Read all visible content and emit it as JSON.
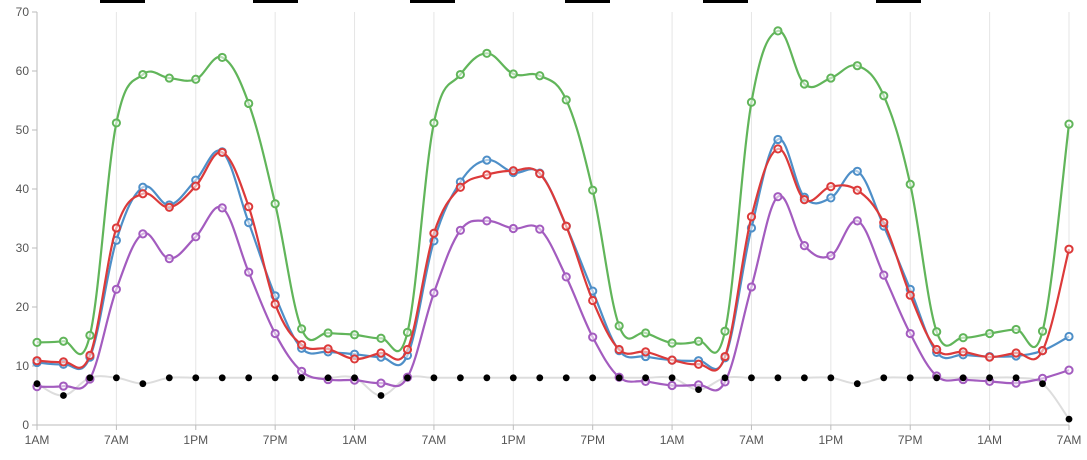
{
  "chart_data": {
    "type": "line",
    "title": "",
    "xlabel": "",
    "ylabel": "",
    "ylim": [
      0,
      70
    ],
    "y_ticks": [
      0,
      10,
      20,
      30,
      40,
      50,
      60,
      70
    ],
    "x_tick_labels": [
      "1AM",
      "7AM",
      "1PM",
      "7PM",
      "1AM",
      "7AM",
      "1PM",
      "7PM",
      "1AM",
      "7AM",
      "1PM",
      "7PM",
      "1AM",
      "7AM"
    ],
    "x_tick_step_hours": 6,
    "x_hours": [
      0,
      2,
      4,
      6,
      8,
      10,
      12,
      14,
      16,
      18,
      20,
      22,
      24,
      26,
      28,
      30,
      32,
      34,
      36,
      38,
      40,
      42,
      44,
      46,
      48,
      50,
      52,
      54,
      56,
      58,
      60,
      62,
      64,
      66,
      68,
      70,
      72,
      74,
      76,
      78
    ],
    "grid": "vertical",
    "legend": "top",
    "legend_entries": [
      {
        "name": "",
        "color": "#000000"
      },
      {
        "name": "",
        "color": "#000000"
      },
      {
        "name": "",
        "color": "#000000"
      },
      {
        "name": "",
        "color": "#000000"
      },
      {
        "name": "",
        "color": "#000000"
      },
      {
        "name": "",
        "color": "#000000"
      }
    ],
    "series": [
      {
        "color": "#61b55a",
        "values": [
          14,
          14.2,
          15.2,
          51.2,
          59.4,
          58.8,
          58.6,
          62.3,
          54.5,
          37.5,
          16.3,
          15.6,
          15.3,
          14.7,
          15.7,
          51.2,
          59.4,
          63,
          59.5,
          59.2,
          55.1,
          39.8,
          16.8,
          15.6,
          13.9,
          14.2,
          15.9,
          54.7,
          66.8,
          57.8,
          58.8,
          60.9,
          55.8,
          40.8,
          15.8,
          14.8,
          15.5,
          16.2,
          15.9,
          51
        ]
      },
      {
        "color": "#4e8fc8",
        "values": [
          10.6,
          10.3,
          11.5,
          31.3,
          40.3,
          37.3,
          41.5,
          46.3,
          34.3,
          21.9,
          13,
          12.4,
          12,
          11.5,
          11.8,
          31.2,
          41.2,
          44.9,
          42.8,
          42.7,
          33.7,
          22.7,
          12.6,
          11.6,
          11,
          10.9,
          11.4,
          33.4,
          48.4,
          38.6,
          38.5,
          43,
          33.7,
          23,
          12.3,
          11.9,
          11.6,
          11.7,
          12.6,
          15
        ]
      },
      {
        "color": "#dc3a3a",
        "values": [
          10.9,
          10.7,
          11.8,
          33.4,
          39.2,
          36.9,
          40.5,
          46.2,
          37,
          20.5,
          13.6,
          12.9,
          11.2,
          12.2,
          12.8,
          32.5,
          40.3,
          42.4,
          43.1,
          42.6,
          33.7,
          21.1,
          12.8,
          12.4,
          11,
          10.3,
          11.6,
          35.3,
          46.8,
          38.2,
          40.4,
          39.8,
          34.3,
          22,
          12.8,
          12.4,
          11.5,
          12.2,
          12.6,
          29.8
        ]
      },
      {
        "color": "#a35cbf",
        "values": [
          6.5,
          6.6,
          7.8,
          23,
          32.4,
          28.2,
          31.9,
          36.8,
          25.9,
          15.5,
          9.1,
          7.7,
          7.6,
          7.1,
          8.1,
          22.4,
          33,
          34.6,
          33.3,
          33.2,
          25.1,
          14.9,
          8.1,
          7.4,
          6.7,
          6.8,
          7.3,
          23.4,
          38.7,
          30.4,
          28.7,
          34.6,
          25.4,
          15.5,
          8.3,
          7.7,
          7.4,
          7.1,
          7.9,
          9.3
        ]
      },
      {
        "color": "#000000",
        "marker_only": true,
        "values": [
          7,
          5,
          8,
          8,
          7,
          8,
          8,
          8,
          8,
          8,
          8,
          8,
          8,
          5,
          8,
          8,
          8,
          8,
          8,
          8,
          8,
          8,
          8,
          8,
          8,
          6,
          8,
          8,
          8,
          8,
          8,
          7,
          8,
          8,
          8,
          8,
          8,
          8,
          7,
          1
        ]
      }
    ],
    "background_trace": {
      "color": "#dddddd",
      "values": [
        7,
        5,
        8,
        8,
        7,
        8,
        8,
        8,
        8,
        8,
        8,
        8,
        8,
        5,
        8,
        8,
        8,
        8,
        8,
        8,
        8,
        8,
        8,
        8,
        8,
        6,
        8,
        8,
        8,
        8,
        8,
        7,
        8,
        8,
        8,
        8,
        8,
        8,
        7,
        1
      ]
    }
  }
}
